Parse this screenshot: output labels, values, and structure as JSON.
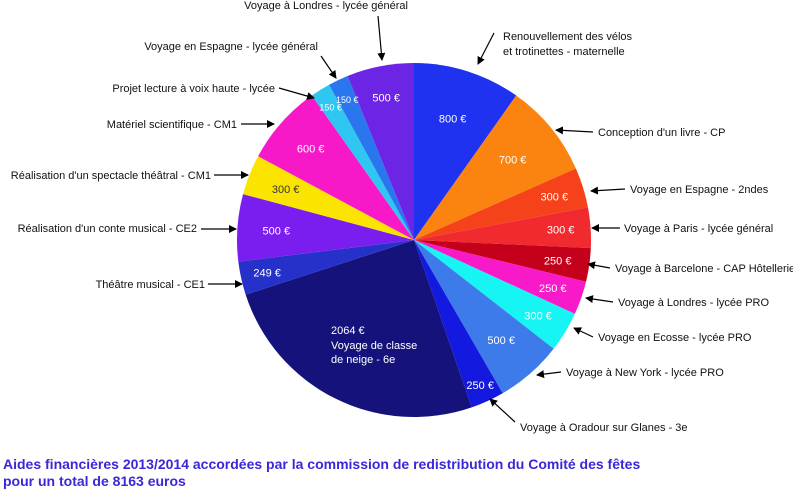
{
  "caption": {
    "line1": "Aides financières 2013/2014 accordées par la commission de redistribution du Comité des fêtes",
    "line2": "pour un total de 8163 euros"
  },
  "chart_data": {
    "type": "pie",
    "title": "",
    "start": "top, clockwise",
    "slices": [
      {
        "label": "Renouvellement des vélos et trotinettes - maternelle",
        "value_label": "800 €",
        "value": 800,
        "color": "#1f32f0"
      },
      {
        "label": "Conception d'un livre - CP",
        "value_label": "700 €",
        "value": 700,
        "color": "#fb8411"
      },
      {
        "label": "Voyage en Espagne - 2ndes",
        "value_label": "300 €",
        "value": 300,
        "color": "#f5421a"
      },
      {
        "label": "Voyage à Paris - lycée général",
        "value_label": "300 €",
        "value": 300,
        "color": "#f02a2e"
      },
      {
        "label": "Voyage à Barcelone - CAP Hôtellerie",
        "value_label": "250 €",
        "value": 250,
        "color": "#c4001b"
      },
      {
        "label": "Voyage à Londres - lycée PRO",
        "value_label": "250 €",
        "value": 250,
        "color": "#f81ac8"
      },
      {
        "label": "Voyage en Ecosse - lycée PRO",
        "value_label": "300 €",
        "value": 300,
        "color": "#17f4f4"
      },
      {
        "label": "Voyage à New York - lycée PRO",
        "value_label": "500 €",
        "value": 500,
        "color": "#3c7be9"
      },
      {
        "label": "Voyage à Oradour sur Glanes - 3e",
        "value_label": "250 €",
        "value": 250,
        "color": "#1419e0"
      },
      {
        "label": "Voyage de classe de neige - 6e",
        "value_label": "2064 €",
        "value": 2064,
        "extra_lines": [
          "Voyage de classe",
          "de neige - 6e"
        ],
        "color": "#15137b"
      },
      {
        "label": "Théâtre musical - CE1",
        "value_label": "249 €",
        "value": 249,
        "color": "#2531c9"
      },
      {
        "label": "Réalisation d'un conte  musical - CE2",
        "value_label": "500 €",
        "value": 500,
        "color": "#7a1ef0"
      },
      {
        "label": "Réalisation d'un spectacle théâtral - CM1",
        "value_label": "300 €",
        "value": 300,
        "color": "#fbe400"
      },
      {
        "label": "Matériel scientifique - CM1",
        "value_label": "600 €",
        "value": 600,
        "color": "#f719c8"
      },
      {
        "label": "Projet lecture à voix haute - lycée",
        "value_label": "150 €",
        "value": 150,
        "color": "#2fc6f2"
      },
      {
        "label": "Voyage en Espagne - lycée général",
        "value_label": "150 €",
        "value": 150,
        "color": "#2a76ee"
      },
      {
        "label": "Voyage à Londres - lycée général",
        "value_label": "500 €",
        "value": 500,
        "color": "#6d25e5"
      }
    ]
  }
}
